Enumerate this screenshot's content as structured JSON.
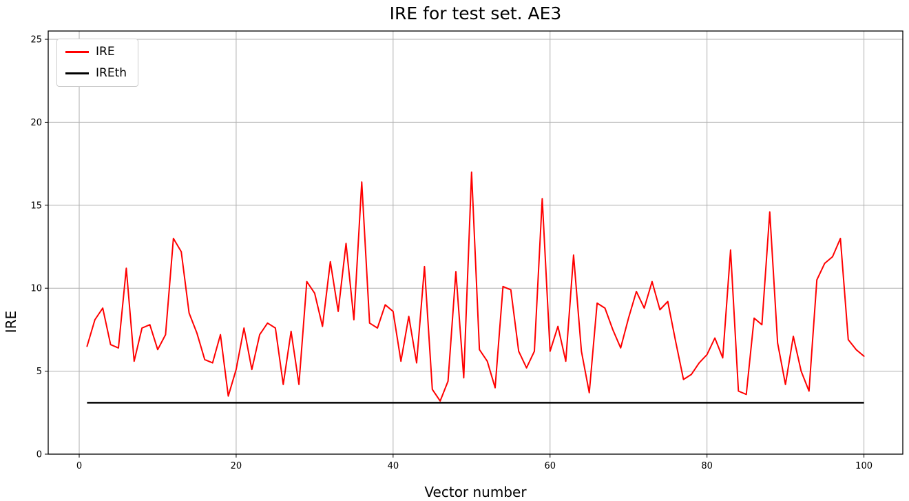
{
  "chart_data": {
    "type": "line",
    "title": "IRE for test set. AE3",
    "xlabel": "Vector number",
    "ylabel": "IRE",
    "xlim": [
      -3.95,
      104.95
    ],
    "ylim": [
      0,
      25.5
    ],
    "xticks": [
      0,
      20,
      40,
      60,
      80,
      100
    ],
    "yticks": [
      0,
      5,
      10,
      15,
      20,
      25
    ],
    "grid": true,
    "colors": {
      "grid": "#b0b0b0",
      "axis": "#000000",
      "background": "#ffffff"
    },
    "legend": {
      "position": "upper left",
      "entries": [
        {
          "label": "IRE",
          "color": "#ff0000"
        },
        {
          "label": "IREth",
          "color": "#000000"
        }
      ]
    },
    "x": [
      1,
      2,
      3,
      4,
      5,
      6,
      7,
      8,
      9,
      10,
      11,
      12,
      13,
      14,
      15,
      16,
      17,
      18,
      19,
      20,
      21,
      22,
      23,
      24,
      25,
      26,
      27,
      28,
      29,
      30,
      31,
      32,
      33,
      34,
      35,
      36,
      37,
      38,
      39,
      40,
      41,
      42,
      43,
      44,
      45,
      46,
      47,
      48,
      49,
      50,
      51,
      52,
      53,
      54,
      55,
      56,
      57,
      58,
      59,
      60,
      61,
      62,
      63,
      64,
      65,
      66,
      67,
      68,
      69,
      70,
      71,
      72,
      73,
      74,
      75,
      76,
      77,
      78,
      79,
      80,
      81,
      82,
      83,
      84,
      85,
      86,
      87,
      88,
      89,
      90,
      91,
      92,
      93,
      94,
      95,
      96,
      97,
      98,
      99,
      100
    ],
    "series": [
      {
        "name": "IRE",
        "color": "#ff0000",
        "values": [
          6.5,
          8.1,
          8.8,
          6.6,
          6.4,
          11.2,
          5.6,
          7.6,
          7.8,
          6.3,
          7.2,
          13.0,
          12.2,
          8.5,
          7.3,
          5.7,
          5.5,
          7.2,
          3.5,
          5.1,
          7.6,
          5.1,
          7.2,
          7.9,
          7.6,
          4.2,
          7.4,
          4.2,
          10.4,
          9.7,
          7.7,
          11.6,
          8.6,
          12.7,
          8.1,
          16.4,
          7.9,
          7.6,
          9.0,
          8.6,
          5.6,
          8.3,
          5.5,
          11.3,
          3.9,
          3.2,
          4.4,
          11.0,
          4.6,
          17.0,
          6.3,
          5.6,
          4.0,
          10.1,
          9.9,
          6.2,
          5.2,
          6.2,
          15.4,
          6.2,
          7.7,
          5.6,
          12.0,
          6.2,
          3.7,
          9.1,
          8.8,
          7.5,
          6.4,
          8.2,
          9.8,
          8.8,
          10.4,
          8.7,
          9.2,
          6.8,
          4.5,
          4.8,
          5.5,
          6.0,
          7.0,
          5.8,
          12.3,
          3.8,
          3.6,
          8.2,
          7.8,
          14.6,
          6.7,
          4.2,
          7.1,
          5.0,
          3.8,
          10.5,
          11.5,
          11.9,
          13.0,
          6.9,
          6.3,
          5.9
        ]
      },
      {
        "name": "IREth",
        "color": "#000000",
        "constant": 3.1
      }
    ]
  }
}
